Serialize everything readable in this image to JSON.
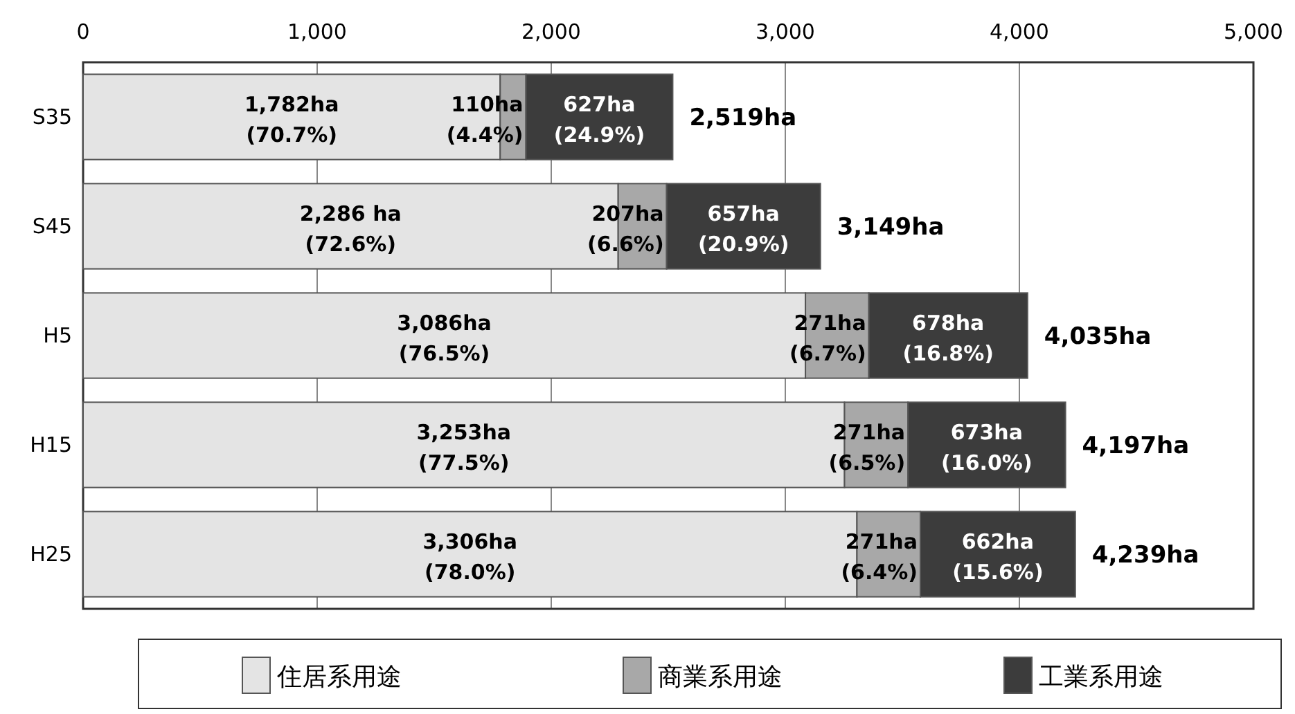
{
  "chart_data": {
    "type": "bar",
    "orientation": "horizontal",
    "stacked": true,
    "categories": [
      "S35",
      "S45",
      "H5",
      "H15",
      "H25"
    ],
    "series": [
      {
        "name": "住居系用途",
        "color": "#e4e4e4",
        "values": [
          1782,
          2286,
          3086,
          3253,
          3306
        ],
        "value_labels": [
          "1,782ha\n(70.7%)",
          "2,286 ha\n(72.6%)",
          "3,086ha\n(76.5%)",
          "3,253ha\n(77.5%)",
          "3,306ha\n(78.0%)"
        ]
      },
      {
        "name": "商業系用途",
        "color": "#a8a8a8",
        "values": [
          110,
          207,
          271,
          271,
          271
        ],
        "value_labels": [
          "110ha\n(4.4%)",
          "207ha\n(6.6%)",
          "271ha\n(6.7%)",
          "271ha\n(6.5%)",
          "271ha\n(6.4%)"
        ]
      },
      {
        "name": "工業系用途",
        "color": "#3c3c3c",
        "values": [
          627,
          657,
          678,
          673,
          662
        ],
        "value_labels": [
          "627ha\n(24.9%)",
          "657ha\n(20.9%)",
          "678ha\n(16.8%)",
          "673ha\n(16.0%)",
          "662ha\n(15.6%)"
        ]
      }
    ],
    "totals": [
      "2,519ha",
      "3,149ha",
      "4,035ha",
      "4,197ha",
      "4,239ha"
    ],
    "xlim": [
      0,
      5000
    ],
    "xticks": [
      0,
      {
        "value": 1000,
        "label": "1,000"
      },
      {
        "value": 2000,
        "label": "2,000"
      },
      {
        "value": 3000,
        "label": "3,000"
      },
      {
        "value": 4000,
        "label": "4,000"
      },
      {
        "value": 5000,
        "label": "5,000"
      }
    ],
    "grid": "x",
    "legend": "bottom"
  }
}
